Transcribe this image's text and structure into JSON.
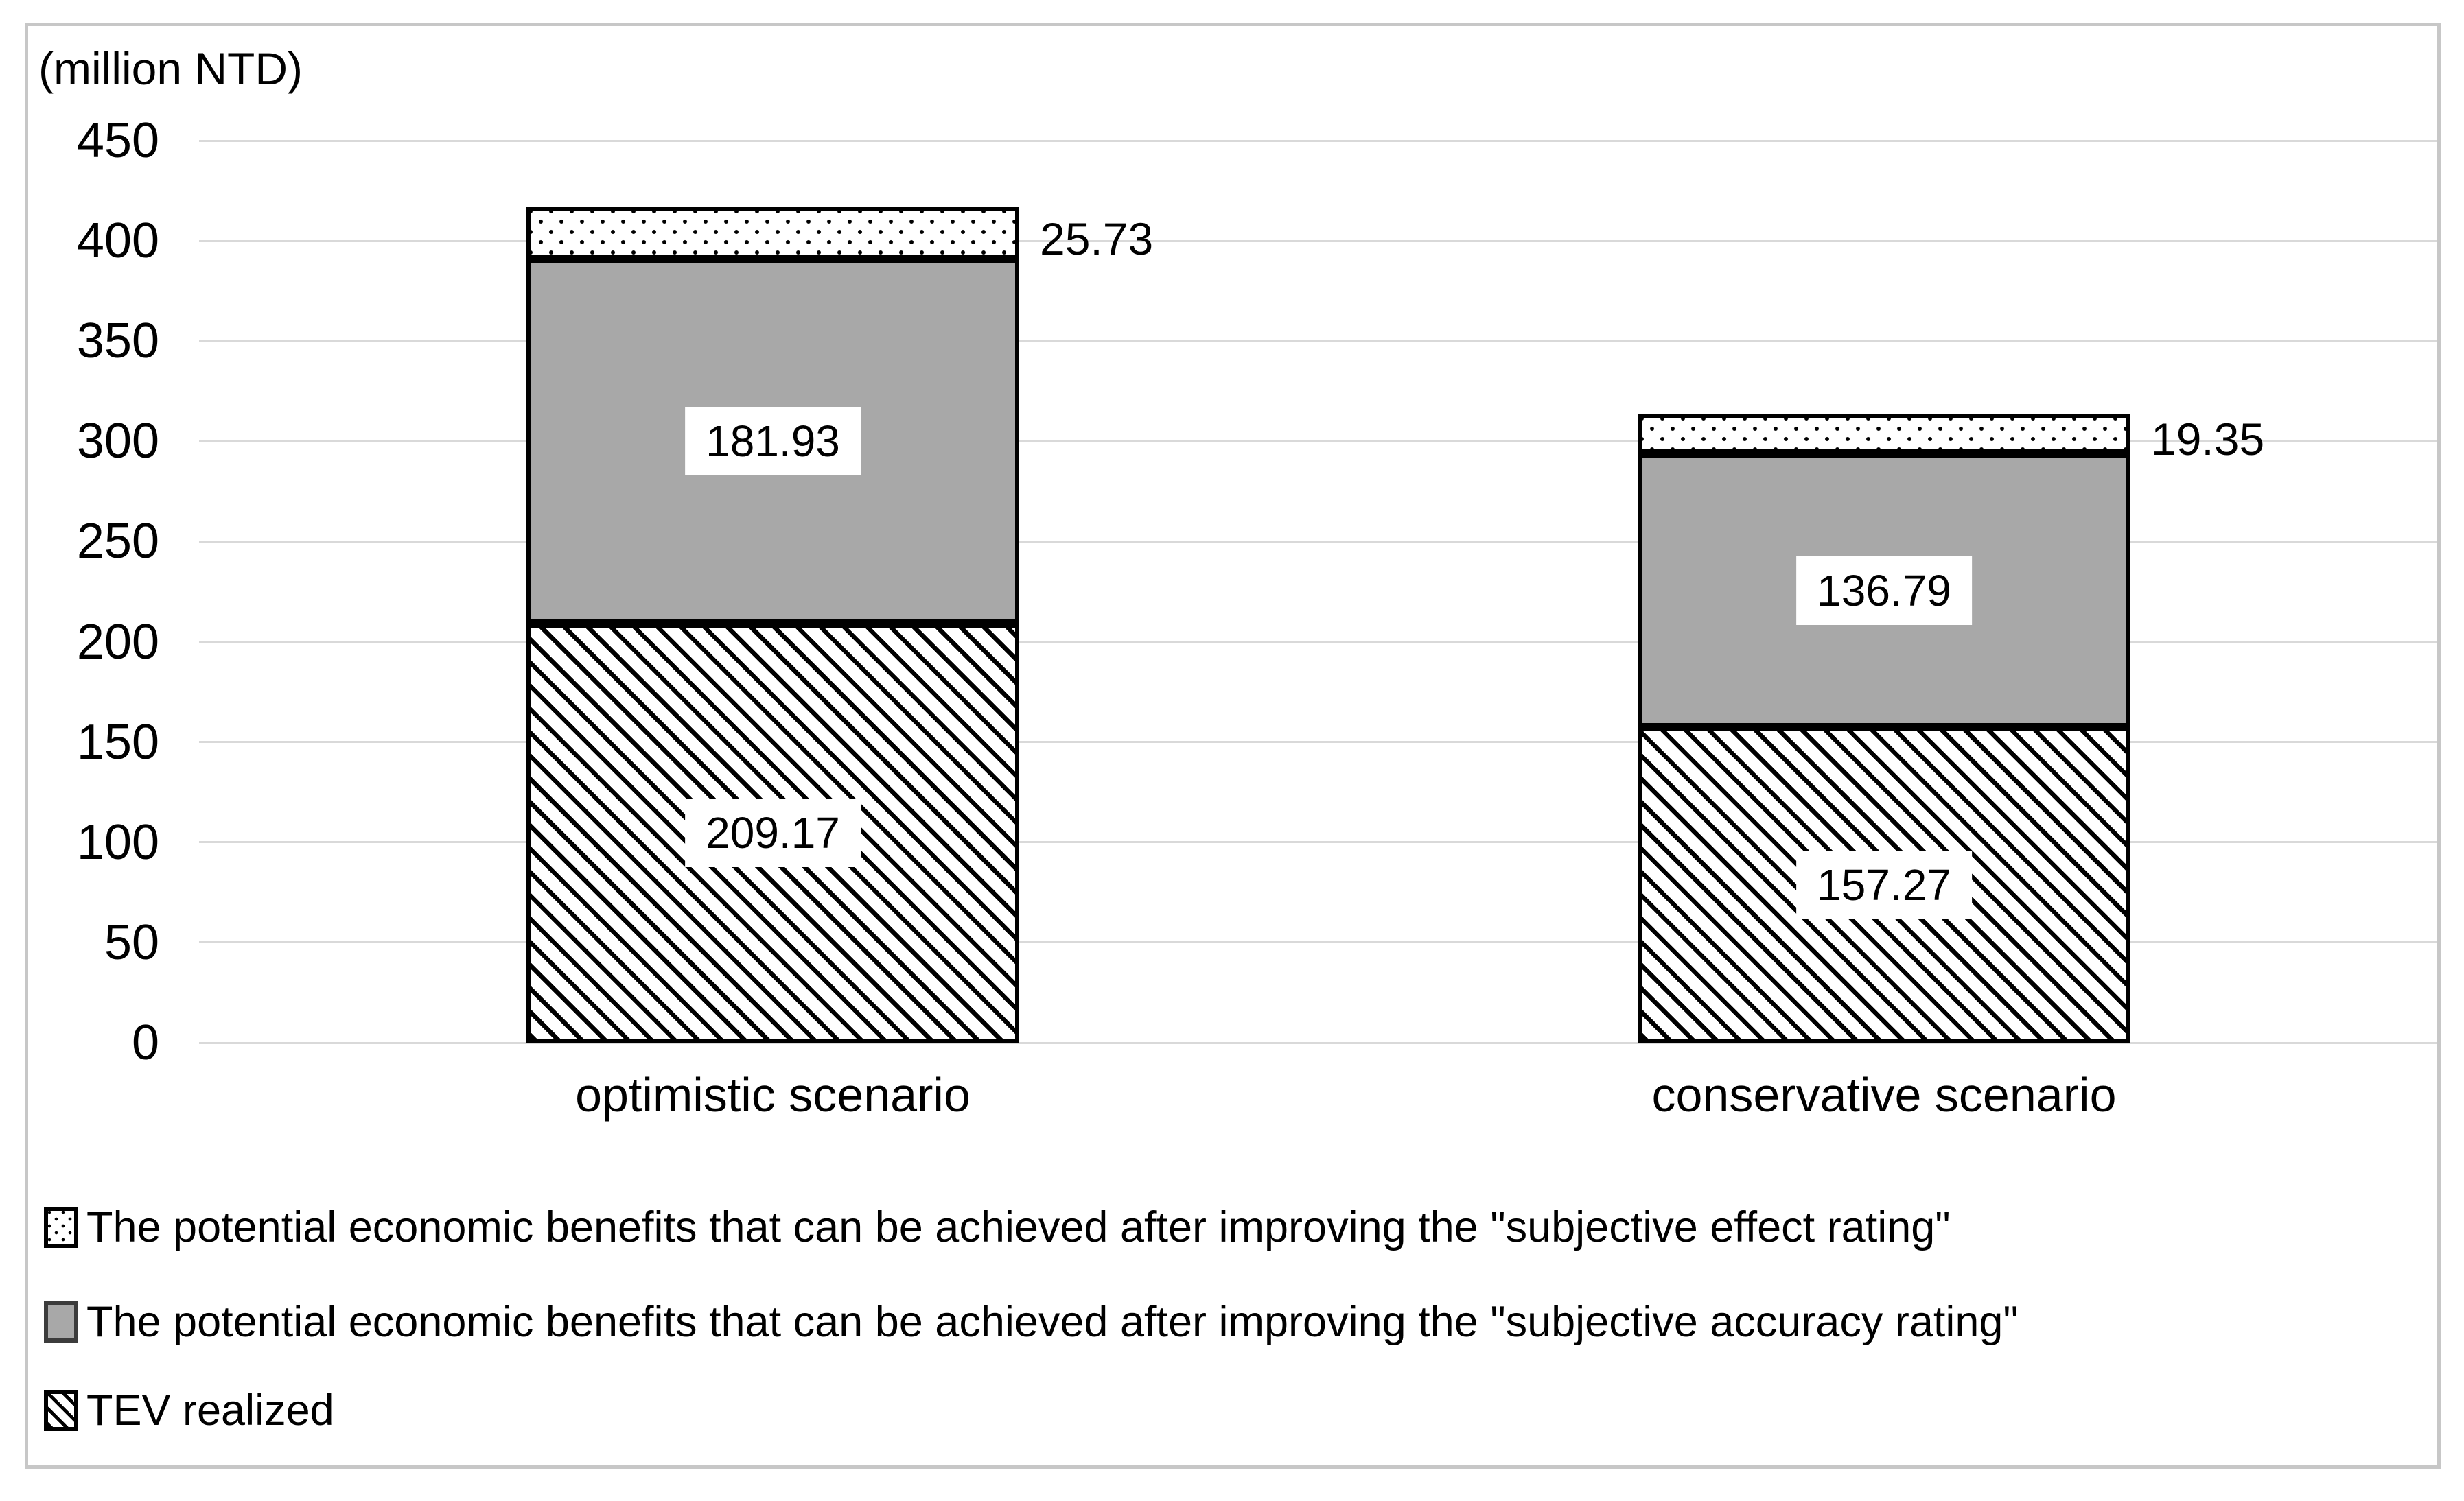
{
  "chart_data": {
    "type": "bar",
    "stacked": true,
    "title": "",
    "unit_label": "(million NTD)",
    "categories": [
      "optimistic scenario",
      "conservative scenario"
    ],
    "series": [
      {
        "name": "TEV realized",
        "pattern": "diagonal-hatch",
        "fill": "#ffffff",
        "values": [
          209.17,
          157.27
        ],
        "label_style": "inside-white-box"
      },
      {
        "name": "The potential economic benefits that can be achieved after improving the \"subjective accuracy rating\"",
        "pattern": "solid",
        "fill": "#a8a8a8",
        "values": [
          181.93,
          136.79
        ],
        "label_style": "inside-white-box"
      },
      {
        "name": "The potential economic benefits that can be achieved after improving the \"subjective effect rating\"",
        "pattern": "dots",
        "fill": "#ffffff",
        "values": [
          25.73,
          19.35
        ],
        "label_style": "outside-right"
      }
    ],
    "ylim": [
      0,
      450
    ],
    "yticks": [
      0,
      50,
      100,
      150,
      200,
      250,
      300,
      350,
      400,
      450
    ],
    "grid": true,
    "legend_position": "bottom-left",
    "legend_order_series_indices": [
      2,
      1,
      0
    ]
  },
  "styles": {
    "grid_color": "#d9d9d9",
    "frame_border_color": "#c7c7c7",
    "bar_border_color": "#000000",
    "gray_fill": "#a8a8a8",
    "text_color": "#000000"
  }
}
